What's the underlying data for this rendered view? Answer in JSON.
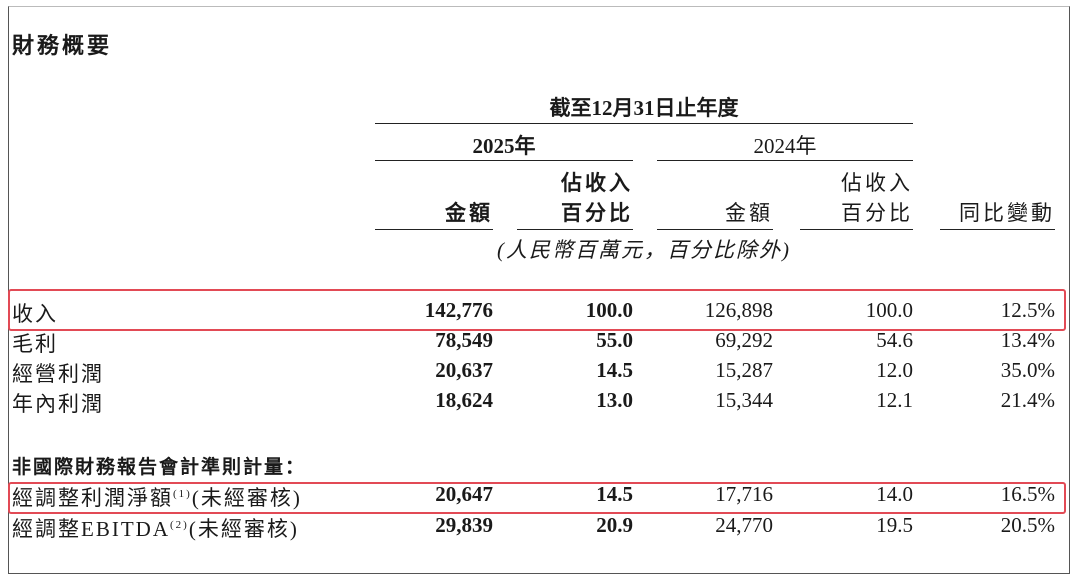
{
  "title": "財務概要",
  "header": {
    "period": "截至12月31日止年度",
    "year_2025": "2025年",
    "year_2024": "2024年",
    "amount": "金額",
    "pct_line1": "佔收入",
    "pct_line2": "百分比",
    "yoy": "同比變動",
    "unit_note": "(人民幣百萬元，百分比除外)"
  },
  "rows": [
    {
      "label": "收入",
      "v2025": "142,776",
      "p2025": "100.0",
      "v2024": "126,898",
      "p2024": "100.0",
      "yoy": "12.5%",
      "highlighted": true
    },
    {
      "label": "毛利",
      "v2025": "78,549",
      "p2025": "55.0",
      "v2024": "69,292",
      "p2024": "54.6",
      "yoy": "13.4%"
    },
    {
      "label": "經營利潤",
      "v2025": "20,637",
      "p2025": "14.5",
      "v2024": "15,287",
      "p2024": "12.0",
      "yoy": "35.0%"
    },
    {
      "label": "年內利潤",
      "v2025": "18,624",
      "p2025": "13.0",
      "v2024": "15,344",
      "p2024": "12.1",
      "yoy": "21.4%"
    }
  ],
  "non_ifrs": {
    "heading": "非國際財務報告會計準則計量：",
    "rows": [
      {
        "label": "經調整利潤淨額",
        "note": "(1)",
        "suffix": "(未經審核)",
        "v2025": "20,647",
        "p2025": "14.5",
        "v2024": "17,716",
        "p2024": "14.0",
        "yoy": "16.5%",
        "highlighted": true
      },
      {
        "label": "經調整EBITDA",
        "note": "(2)",
        "suffix": "(未經審核)",
        "v2025": "29,839",
        "p2025": "20.9",
        "v2024": "24,770",
        "p2024": "19.5",
        "yoy": "20.5%"
      }
    ]
  },
  "highlight_color": "#e24a55"
}
